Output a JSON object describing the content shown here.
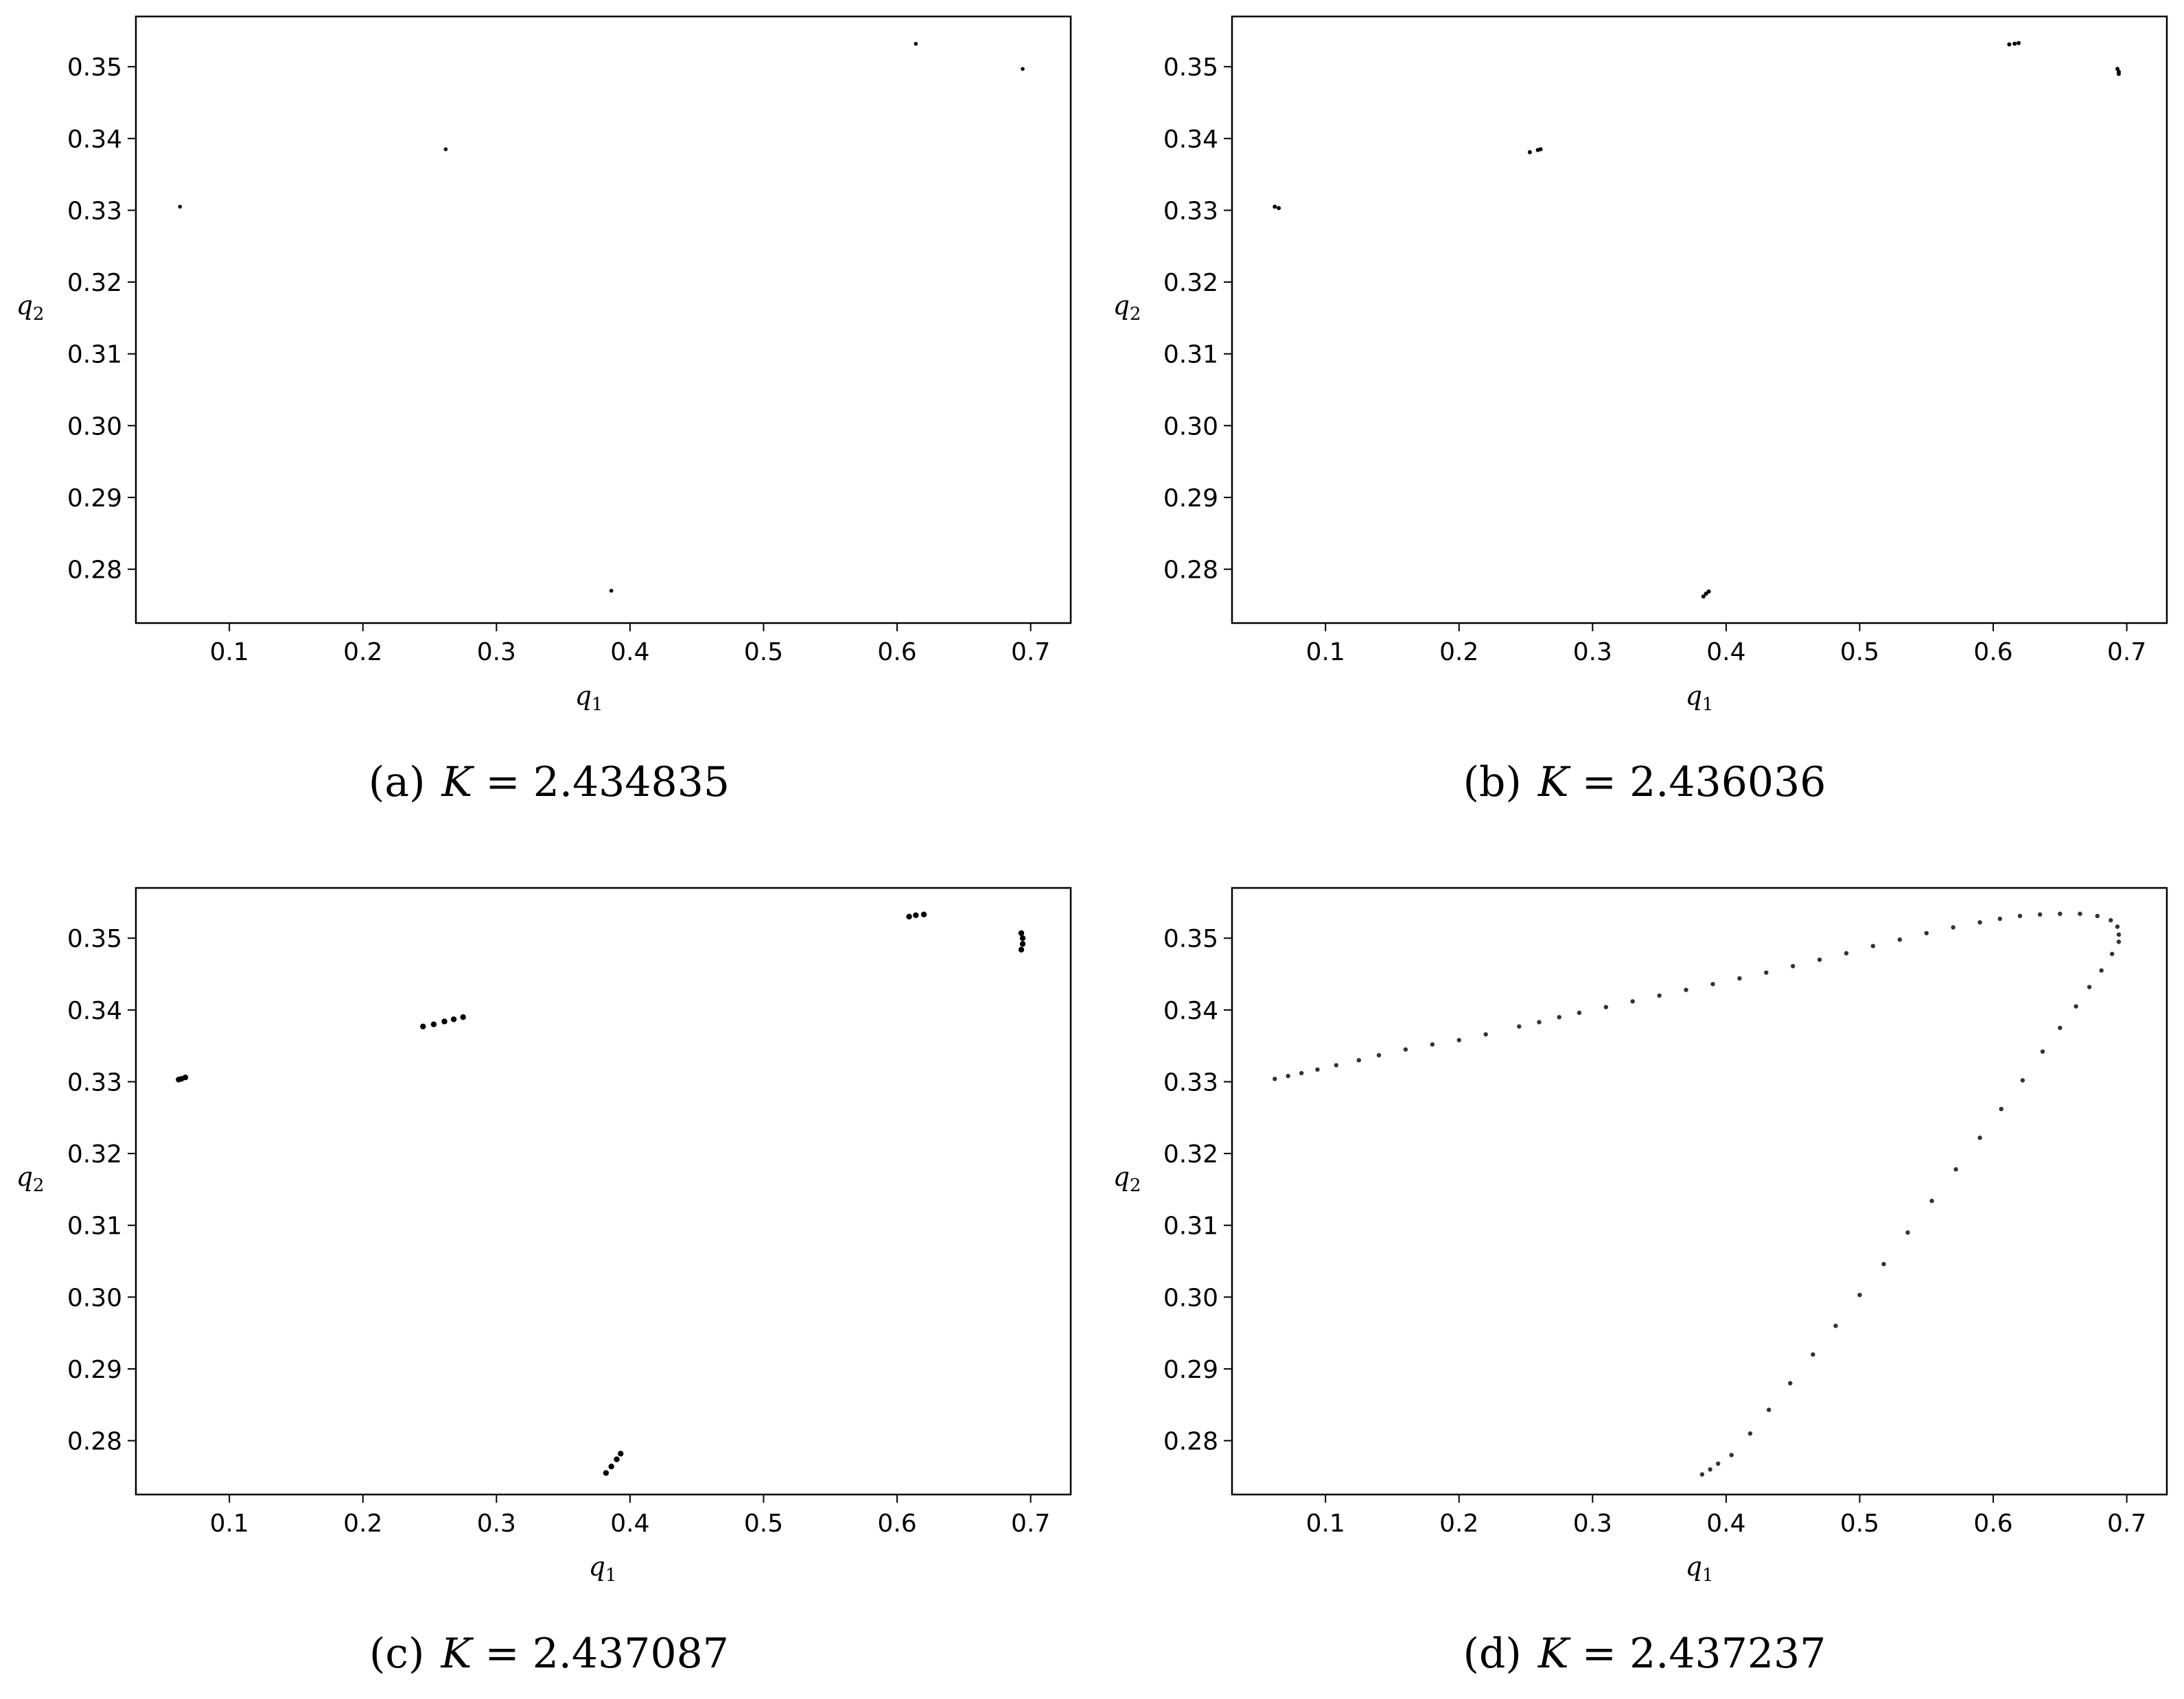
{
  "figure": {
    "panels": [
      {
        "caption_label": "(a)",
        "caption_var": "K",
        "caption_eq": " = ",
        "caption_value": "2.434835"
      },
      {
        "caption_label": "(b)",
        "caption_var": "K",
        "caption_eq": " = ",
        "caption_value": "2.436036"
      },
      {
        "caption_label": "(c)",
        "caption_var": "K",
        "caption_eq": " = ",
        "caption_value": "2.437087"
      },
      {
        "caption_label": "(d)",
        "caption_var": "K",
        "caption_eq": " = ",
        "caption_value": "2.437237"
      }
    ]
  },
  "chart_data": [
    {
      "type": "scatter",
      "title": "",
      "xlabel": "q1",
      "ylabel": "q2",
      "xlim": [
        0.03,
        0.73
      ],
      "ylim": [
        0.2725,
        0.357
      ],
      "xticks": [
        "0.1",
        "0.2",
        "0.3",
        "0.4",
        "0.5",
        "0.6",
        "0.7"
      ],
      "yticks": [
        "0.28",
        "0.29",
        "0.30",
        "0.31",
        "0.32",
        "0.33",
        "0.34",
        "0.35"
      ],
      "points": [
        [
          0.063,
          0.3305
        ],
        [
          0.262,
          0.3385
        ],
        [
          0.386,
          0.277
        ],
        [
          0.614,
          0.3532
        ],
        [
          0.694,
          0.3497
        ]
      ]
    },
    {
      "type": "scatter",
      "title": "",
      "xlabel": "q1",
      "ylabel": "q2",
      "xlim": [
        0.03,
        0.73
      ],
      "ylim": [
        0.2725,
        0.357
      ],
      "xticks": [
        "0.1",
        "0.2",
        "0.3",
        "0.4",
        "0.5",
        "0.6",
        "0.7"
      ],
      "yticks": [
        "0.28",
        "0.29",
        "0.30",
        "0.31",
        "0.32",
        "0.33",
        "0.34",
        "0.35"
      ],
      "points": [
        [
          0.062,
          0.3305
        ],
        [
          0.065,
          0.3303
        ],
        [
          0.253,
          0.3381
        ],
        [
          0.259,
          0.3384
        ],
        [
          0.261,
          0.3385
        ],
        [
          0.383,
          0.2762
        ],
        [
          0.385,
          0.2766
        ],
        [
          0.387,
          0.2769
        ],
        [
          0.612,
          0.3531
        ],
        [
          0.616,
          0.3532
        ],
        [
          0.619,
          0.3533
        ],
        [
          0.693,
          0.3497
        ],
        [
          0.694,
          0.3493
        ],
        [
          0.694,
          0.349
        ]
      ]
    },
    {
      "type": "scatter",
      "title": "",
      "xlabel": "q1",
      "ylabel": "q2",
      "xlim": [
        0.03,
        0.73
      ],
      "ylim": [
        0.2725,
        0.357
      ],
      "xticks": [
        "0.1",
        "0.2",
        "0.3",
        "0.4",
        "0.5",
        "0.6",
        "0.7"
      ],
      "yticks": [
        "0.28",
        "0.29",
        "0.30",
        "0.31",
        "0.32",
        "0.33",
        "0.34",
        "0.35"
      ],
      "points": [
        [
          0.062,
          0.3303
        ],
        [
          0.064,
          0.3304
        ],
        [
          0.067,
          0.3306
        ],
        [
          0.245,
          0.3377
        ],
        [
          0.253,
          0.338
        ],
        [
          0.261,
          0.3384
        ],
        [
          0.268,
          0.3387
        ],
        [
          0.275,
          0.339
        ],
        [
          0.382,
          0.2755
        ],
        [
          0.386,
          0.2764
        ],
        [
          0.39,
          0.2774
        ],
        [
          0.393,
          0.2782
        ],
        [
          0.609,
          0.353
        ],
        [
          0.614,
          0.3532
        ],
        [
          0.62,
          0.3533
        ],
        [
          0.693,
          0.3507
        ],
        [
          0.694,
          0.35
        ],
        [
          0.694,
          0.3492
        ],
        [
          0.693,
          0.3484
        ]
      ]
    },
    {
      "type": "scatter",
      "title": "",
      "xlabel": "q1",
      "ylabel": "q2",
      "xlim": [
        0.03,
        0.73
      ],
      "ylim": [
        0.2725,
        0.357
      ],
      "xticks": [
        "0.1",
        "0.2",
        "0.3",
        "0.4",
        "0.5",
        "0.6",
        "0.7"
      ],
      "yticks": [
        "0.28",
        "0.29",
        "0.30",
        "0.31",
        "0.32",
        "0.33",
        "0.34",
        "0.35"
      ],
      "points": [
        [
          0.062,
          0.3304
        ],
        [
          0.072,
          0.3308
        ],
        [
          0.082,
          0.3312
        ],
        [
          0.094,
          0.3317
        ],
        [
          0.108,
          0.3323
        ],
        [
          0.125,
          0.333
        ],
        [
          0.14,
          0.3337
        ],
        [
          0.16,
          0.3345
        ],
        [
          0.18,
          0.3352
        ],
        [
          0.2,
          0.3358
        ],
        [
          0.22,
          0.3366
        ],
        [
          0.245,
          0.3377
        ],
        [
          0.26,
          0.3383
        ],
        [
          0.275,
          0.339
        ],
        [
          0.29,
          0.3396
        ],
        [
          0.31,
          0.3404
        ],
        [
          0.33,
          0.3412
        ],
        [
          0.35,
          0.342
        ],
        [
          0.37,
          0.3428
        ],
        [
          0.39,
          0.3436
        ],
        [
          0.41,
          0.3444
        ],
        [
          0.43,
          0.3452
        ],
        [
          0.45,
          0.3461
        ],
        [
          0.47,
          0.347
        ],
        [
          0.49,
          0.3479
        ],
        [
          0.51,
          0.3489
        ],
        [
          0.53,
          0.3498
        ],
        [
          0.55,
          0.3507
        ],
        [
          0.57,
          0.3515
        ],
        [
          0.59,
          0.3522
        ],
        [
          0.605,
          0.3527
        ],
        [
          0.62,
          0.3531
        ],
        [
          0.635,
          0.3533
        ],
        [
          0.65,
          0.3534
        ],
        [
          0.665,
          0.3534
        ],
        [
          0.678,
          0.3531
        ],
        [
          0.688,
          0.3525
        ],
        [
          0.693,
          0.3516
        ],
        [
          0.694,
          0.3505
        ],
        [
          0.694,
          0.3495
        ],
        [
          0.689,
          0.3478
        ],
        [
          0.681,
          0.3455
        ],
        [
          0.672,
          0.3432
        ],
        [
          0.662,
          0.3405
        ],
        [
          0.65,
          0.3375
        ],
        [
          0.637,
          0.3342
        ],
        [
          0.622,
          0.3302
        ],
        [
          0.606,
          0.3262
        ],
        [
          0.59,
          0.3222
        ],
        [
          0.572,
          0.3178
        ],
        [
          0.554,
          0.3134
        ],
        [
          0.536,
          0.309
        ],
        [
          0.518,
          0.3046
        ],
        [
          0.5,
          0.3003
        ],
        [
          0.482,
          0.296
        ],
        [
          0.465,
          0.292
        ],
        [
          0.448,
          0.288
        ],
        [
          0.432,
          0.2843
        ],
        [
          0.418,
          0.281
        ],
        [
          0.404,
          0.278
        ],
        [
          0.394,
          0.2768
        ],
        [
          0.388,
          0.276
        ],
        [
          0.382,
          0.2753
        ]
      ]
    }
  ]
}
